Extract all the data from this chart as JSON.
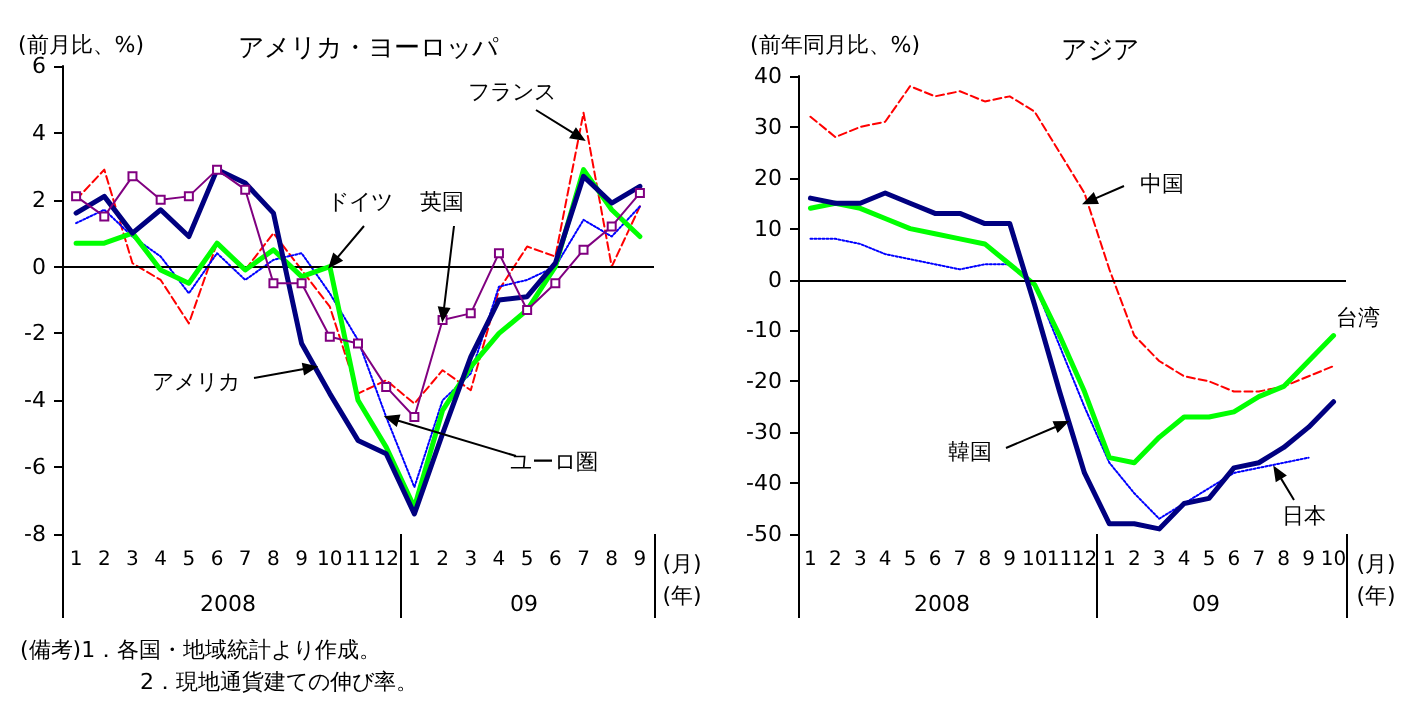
{
  "chart_data": [
    {
      "type": "line",
      "title": "アメリカ・ヨーロッパ",
      "ylabel": "(前月比、%)",
      "x": [
        "2008-01",
        "2008-02",
        "2008-03",
        "2008-04",
        "2008-05",
        "2008-06",
        "2008-07",
        "2008-08",
        "2008-09",
        "2008-10",
        "2008-11",
        "2008-12",
        "2009-01",
        "2009-02",
        "2009-03",
        "2009-04",
        "2009-05",
        "2009-06",
        "2009-07",
        "2009-08",
        "2009-09"
      ],
      "series": [
        {
          "color": "#ff0000",
          "line_style": "dashed",
          "values": [
            2.0,
            2.9,
            0.1,
            -0.4,
            -1.7,
            0.7,
            -0.1,
            1.0,
            -0.1,
            -1.2,
            -3.8,
            -3.4,
            -4.1,
            -3.1,
            -3.7,
            -0.7,
            0.6,
            0.3,
            4.6,
            0.0,
            1.8
          ]
        },
        {
          "color": "#0000ff",
          "line_style": "dotted",
          "values": [
            1.3,
            1.7,
            0.9,
            0.3,
            -0.8,
            0.4,
            -0.4,
            0.2,
            0.4,
            -0.8,
            -2.2,
            -4.5,
            -6.6,
            -4.0,
            -3.2,
            -0.6,
            -0.4,
            0.0,
            1.4,
            0.9,
            1.8
          ]
        },
        {
          "color": "#800080",
          "marker": "square",
          "values": [
            2.1,
            1.5,
            2.7,
            2.0,
            2.1,
            2.9,
            2.3,
            -0.5,
            -0.5,
            -2.1,
            -2.3,
            -3.6,
            -4.5,
            -1.6,
            -1.4,
            0.4,
            -1.3,
            -0.5,
            0.5,
            1.2,
            2.2
          ]
        },
        {
          "color": "#00ff00",
          "values": [
            0.7,
            0.7,
            1.0,
            -0.1,
            -0.5,
            0.7,
            -0.1,
            0.5,
            -0.3,
            0.0,
            -4.0,
            -5.4,
            -7.2,
            -4.3,
            -3.0,
            -2.0,
            -1.3,
            0.0,
            2.9,
            1.7,
            0.9
          ]
        },
        {
          "color": "#000080",
          "values": [
            1.6,
            2.1,
            1.0,
            1.7,
            0.9,
            2.9,
            2.5,
            1.6,
            -2.3,
            -3.8,
            -5.2,
            -5.6,
            -7.4,
            -5.0,
            -2.7,
            -1.0,
            -0.9,
            0.1,
            2.7,
            1.9,
            2.4
          ]
        }
      ],
      "xlim": [
        "2007-12-16",
        "2009-09-16"
      ],
      "xticks": [
        {
          "value": "2008-01",
          "label": "1"
        },
        {
          "value": "2008-02",
          "label": "2"
        },
        {
          "value": "2008-03",
          "label": "3"
        },
        {
          "value": "2008-04",
          "label": "4"
        },
        {
          "value": "2008-05",
          "label": "5"
        },
        {
          "value": "2008-06",
          "label": "6"
        },
        {
          "value": "2008-07",
          "label": "7"
        },
        {
          "value": "2008-08",
          "label": "8"
        },
        {
          "value": "2008-09",
          "label": "9"
        },
        {
          "value": "2008-10",
          "label": "10"
        },
        {
          "value": "2008-11",
          "label": "11"
        },
        {
          "value": "2008-12",
          "label": "12"
        },
        {
          "value": "2009-01",
          "label": "1"
        },
        {
          "value": "2009-02",
          "label": "2"
        },
        {
          "value": "2009-03",
          "label": "3"
        },
        {
          "value": "2009-04",
          "label": "4"
        },
        {
          "value": "2009-05",
          "label": "5"
        },
        {
          "value": "2009-06",
          "label": "6"
        },
        {
          "value": "2009-07",
          "label": "7"
        },
        {
          "value": "2009-08",
          "label": "8"
        },
        {
          "value": "2009-09",
          "label": "9"
        }
      ],
      "ylim": [
        -8,
        6
      ],
      "yticks": [
        -8,
        -6,
        -4,
        -2,
        0,
        2,
        4,
        6
      ],
      "grid": false,
      "marker": "none",
      "line_style": "solid",
      "ref_lines": [
        {
          "axis": "y",
          "value": 0,
          "color": "#000000"
        }
      ],
      "annotations": [
        "2008",
        "09",
        "(月)",
        "(年)",
        "(備考)1．各国・地域統計より作成。",
        "2．現地通貨建ての伸び率。",
        {
          "text": "フランス",
          "x": "2009-07",
          "y": 3.8
        },
        {
          "text": "ユーロ圏",
          "x": "2008-12",
          "y": -4.5
        },
        {
          "text": "英国",
          "x": "2009-02",
          "y": -1.6
        },
        {
          "text": "ドイツ",
          "x": "2008-10",
          "y": 0
        },
        {
          "text": "アメリカ",
          "x": "2008-09-16",
          "y": -3.0
        }
      ]
    },
    {
      "type": "line",
      "title": "アジア",
      "ylabel": "(前年同月比、%)",
      "x": [
        "2008-01",
        "2008-02",
        "2008-03",
        "2008-04",
        "2008-05",
        "2008-06",
        "2008-07",
        "2008-08",
        "2008-09",
        "2008-10",
        "2008-11",
        "2008-12",
        "2009-01",
        "2009-02",
        "2009-03",
        "2009-04",
        "2009-05",
        "2009-06",
        "2009-07",
        "2009-08",
        "2009-09",
        "2009-10"
      ],
      "series": [
        {
          "color": "#ff0000",
          "line_style": "dashed",
          "values": [
            32,
            28,
            30,
            31,
            38,
            36,
            37,
            35,
            36,
            33,
            25,
            17,
            2,
            -11,
            -16,
            -19,
            -20,
            -22,
            -22,
            -21,
            -19,
            -17
          ]
        },
        {
          "color": "#0000ff",
          "line_style": "dotted",
          "values": [
            8,
            8,
            7,
            5,
            4,
            3,
            2,
            3,
            3,
            -1,
            -13,
            -25,
            -36,
            -42,
            -47,
            -44,
            -41,
            -38,
            -37,
            -36,
            -35,
            null
          ]
        },
        {
          "color": "#00ff00",
          "values": [
            14,
            15,
            14,
            12,
            10,
            9,
            8,
            7,
            3,
            -1,
            -11,
            -22,
            -35,
            -36,
            -31,
            -27,
            -27,
            -26,
            -23,
            -21,
            -16,
            -11
          ]
        },
        {
          "color": "#000080",
          "values": [
            16,
            15,
            15,
            17,
            15,
            13,
            13,
            11,
            11,
            -5,
            -22,
            -38,
            -48,
            -48,
            -49,
            -44,
            -43,
            -37,
            -36,
            -33,
            -29,
            -24
          ]
        }
      ],
      "xlim": [
        "2007-12-16",
        "2009-10-16"
      ],
      "xticks": [
        {
          "value": "2008-01",
          "label": "1"
        },
        {
          "value": "2008-02",
          "label": "2"
        },
        {
          "value": "2008-03",
          "label": "3"
        },
        {
          "value": "2008-04",
          "label": "4"
        },
        {
          "value": "2008-05",
          "label": "5"
        },
        {
          "value": "2008-06",
          "label": "6"
        },
        {
          "value": "2008-07",
          "label": "7"
        },
        {
          "value": "2008-08",
          "label": "8"
        },
        {
          "value": "2008-09",
          "label": "9"
        },
        {
          "value": "2008-10",
          "label": "10"
        },
        {
          "value": "2008-11",
          "label": "11"
        },
        {
          "value": "2008-12",
          "label": "12"
        },
        {
          "value": "2009-01",
          "label": "1"
        },
        {
          "value": "2009-02",
          "label": "2"
        },
        {
          "value": "2009-03",
          "label": "3"
        },
        {
          "value": "2009-04",
          "label": "4"
        },
        {
          "value": "2009-05",
          "label": "5"
        },
        {
          "value": "2009-06",
          "label": "6"
        },
        {
          "value": "2009-07",
          "label": "7"
        },
        {
          "value": "2009-08",
          "label": "8"
        },
        {
          "value": "2009-09",
          "label": "9"
        },
        {
          "value": "2009-10",
          "label": "10"
        }
      ],
      "ylim": [
        -50,
        40
      ],
      "yticks": [
        -50,
        -40,
        -30,
        -20,
        -10,
        0,
        10,
        20,
        30,
        40
      ],
      "grid": false,
      "marker": "none",
      "line_style": "solid",
      "ref_lines": [
        {
          "axis": "y",
          "value": 0,
          "color": "#000000"
        }
      ],
      "annotations": [
        "2008",
        "09",
        "(月)",
        "(年)",
        {
          "text": "中国",
          "x": "2008-12",
          "y": 15
        },
        {
          "text": "日本",
          "x": "2009-07-20",
          "y": -37
        },
        {
          "text": "台湾",
          "x": "2009-10",
          "y": -11
        },
        {
          "text": "韓国",
          "x": "2008-11-10",
          "y": -28
        }
      ]
    }
  ]
}
